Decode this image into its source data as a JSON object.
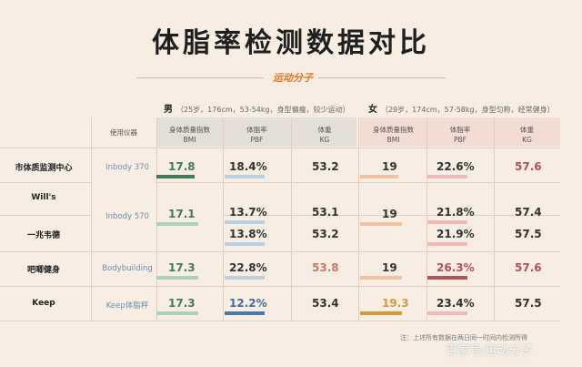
{
  "title": "体脂率检测数据对比",
  "logo": "运动分子",
  "male": {
    "label": "男",
    "desc": "（25岁，176cm，53-54kg，身型偏瘦，较少运动）"
  },
  "female": {
    "label": "女",
    "desc": "（29岁，174cm，57-58kg，身型匀称，经常健身）"
  },
  "instrument_header": "使用仪器",
  "metrics": [
    {
      "l1": "身体质量指数",
      "l2": "BMI"
    },
    {
      "l1": "体脂率",
      "l2": "PBF"
    },
    {
      "l1": "体重",
      "l2": "KG"
    }
  ],
  "rows": [
    {
      "name": "市体质监测中心",
      "instrument": "Inbody 370",
      "m": [
        "17.8",
        "18.4%",
        "53.2"
      ],
      "f": [
        "19",
        "22.6%",
        "57.6"
      ]
    },
    {
      "name": "Will's",
      "instrument": "Inbody 570",
      "m": [
        "17.1",
        "13.7%",
        "53.1"
      ],
      "f": [
        "19",
        "21.8%",
        "57.4"
      ]
    },
    {
      "name": "一兆韦德",
      "instrument": "",
      "m": [
        "",
        "13.8%",
        "53.2"
      ],
      "f": [
        "",
        "21.9%",
        "57.5"
      ]
    },
    {
      "name": "吧唧健身",
      "instrument": "Bodybuilding",
      "m": [
        "17.3",
        "22.8%",
        "53.8"
      ],
      "f": [
        "19",
        "26.3%",
        "57.6"
      ]
    },
    {
      "name": "Keep",
      "instrument": "Keep体脂秤",
      "m": [
        "17.3",
        "12.2%",
        "53.4"
      ],
      "f": [
        "19.3",
        "23.4%",
        "57.5"
      ]
    }
  ],
  "note": "注：上述所有数据在两日同一时间内检测所得",
  "watermark": "百家号/运动分子"
}
